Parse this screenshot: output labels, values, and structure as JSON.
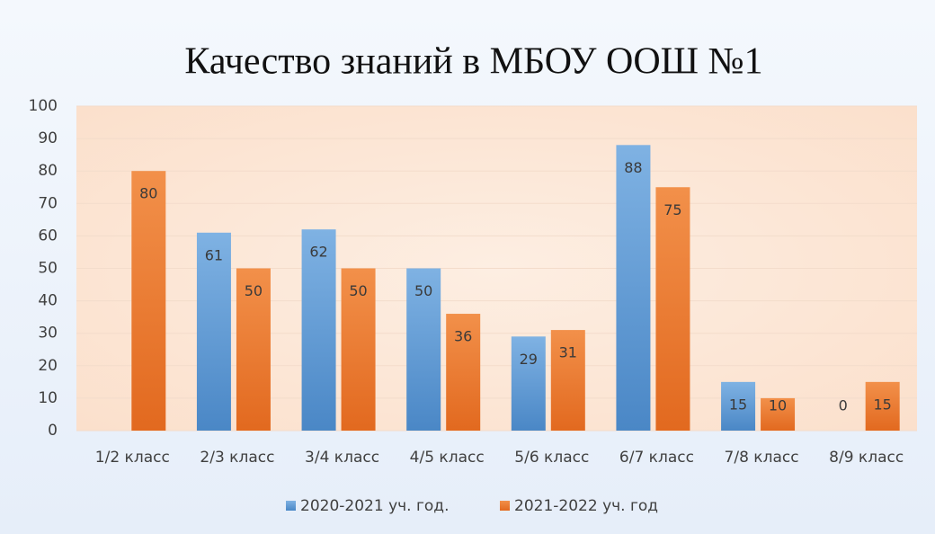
{
  "chart_data": {
    "type": "bar",
    "title": "Качество знаний в МБОУ ООШ №1",
    "categories": [
      "1/2 класс",
      "2/3 класс",
      "3/4 класс",
      "4/5 класс",
      "5/6 класс",
      "6/7 класс",
      "7/8 класс",
      "8/9 класс"
    ],
    "series": [
      {
        "name": "2020-2021 уч. год.",
        "color": "#5b9bd5",
        "values": [
          null,
          61,
          62,
          50,
          29,
          88,
          15,
          0
        ]
      },
      {
        "name": "2021-2022 уч. год",
        "color": "#ed7d31",
        "values": [
          80,
          50,
          50,
          36,
          31,
          75,
          10,
          15
        ]
      }
    ],
    "ylim": [
      0,
      100
    ],
    "yticks": [
      0,
      10,
      20,
      30,
      40,
      50,
      60,
      70,
      80,
      90,
      100
    ],
    "grid": true,
    "legend": "bottom"
  }
}
